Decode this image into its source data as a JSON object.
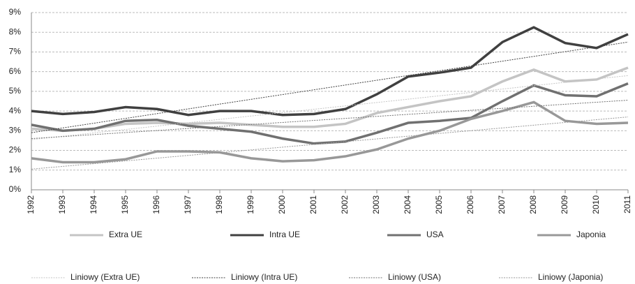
{
  "chart_data": {
    "type": "line",
    "x": [
      1992,
      1993,
      1994,
      1995,
      1996,
      1997,
      1998,
      1999,
      2000,
      2001,
      2002,
      2003,
      2004,
      2005,
      2006,
      2007,
      2008,
      2009,
      2010,
      2011
    ],
    "xlim": [
      1992,
      2011
    ],
    "xticks": [
      1992,
      1993,
      1994,
      1995,
      1996,
      1997,
      1998,
      1999,
      2000,
      2001,
      2002,
      2003,
      2004,
      2005,
      2006,
      2007,
      2008,
      2009,
      2010,
      2011
    ],
    "ylim": [
      0,
      9
    ],
    "yticks": [
      {
        "value": 0,
        "label": "0%"
      },
      {
        "value": 1,
        "label": "1%"
      },
      {
        "value": 2,
        "label": "2%"
      },
      {
        "value": 3,
        "label": "3%"
      },
      {
        "value": 4,
        "label": "4%"
      },
      {
        "value": 5,
        "label": "5%"
      },
      {
        "value": 6,
        "label": "6%"
      },
      {
        "value": 7,
        "label": "7%"
      },
      {
        "value": 8,
        "label": "8%"
      },
      {
        "value": 9,
        "label": "9%"
      }
    ],
    "grid": true,
    "legend": "bottom",
    "series": [
      {
        "name": "Extra UE",
        "color": "#c4c4c4",
        "values": [
          3.1,
          3.0,
          3.1,
          3.35,
          3.4,
          3.35,
          3.4,
          3.3,
          3.2,
          3.2,
          3.35,
          3.9,
          4.2,
          4.5,
          4.75,
          5.5,
          6.1,
          5.5,
          5.6,
          6.2
        ]
      },
      {
        "name": "Intra UE",
        "color": "#404040",
        "values": [
          4.0,
          3.85,
          3.95,
          4.2,
          4.1,
          3.8,
          4.0,
          4.0,
          3.8,
          3.85,
          4.1,
          4.85,
          5.75,
          5.95,
          6.2,
          7.5,
          8.25,
          7.45,
          7.2,
          7.9
        ]
      },
      {
        "name": "USA",
        "color": "#707070",
        "values": [
          3.3,
          3.0,
          3.1,
          3.5,
          3.55,
          3.25,
          3.1,
          2.95,
          2.6,
          2.35,
          2.45,
          2.9,
          3.4,
          3.5,
          3.65,
          4.5,
          5.3,
          4.8,
          4.75,
          5.4
        ]
      },
      {
        "name": "Japonia",
        "color": "#989898",
        "values": [
          1.6,
          1.4,
          1.4,
          1.55,
          1.95,
          1.95,
          1.9,
          1.6,
          1.45,
          1.5,
          1.7,
          2.05,
          2.6,
          3.0,
          3.6,
          4.0,
          4.45,
          3.5,
          3.35,
          3.4
        ]
      },
      {
        "name": "Liniowy (Extra UE)",
        "color": "#c4c4c4",
        "dashed": true,
        "x": [
          1992,
          2011
        ],
        "values": [
          2.55,
          5.8
        ]
      },
      {
        "name": "Liniowy (Intra UE)",
        "color": "#404040",
        "dashed": true,
        "x": [
          1992,
          2011
        ],
        "values": [
          2.9,
          7.5
        ]
      },
      {
        "name": "Liniowy (USA)",
        "color": "#707070",
        "dashed": true,
        "x": [
          1992,
          2011
        ],
        "values": [
          2.6,
          4.55
        ]
      },
      {
        "name": "Liniowy (Japonia)",
        "color": "#989898",
        "dashed": true,
        "x": [
          1992,
          2011
        ],
        "values": [
          1.05,
          3.7
        ]
      }
    ]
  }
}
